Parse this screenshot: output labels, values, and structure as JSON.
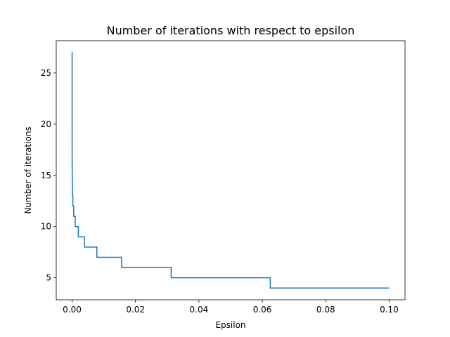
{
  "chart_data": {
    "type": "line",
    "title": "Number of iterations with respect to epsilon",
    "xlabel": "Epsilon",
    "ylabel": "Number of iterations",
    "xlim": [
      -0.005,
      0.105
    ],
    "ylim": [
      2.85,
      28.15
    ],
    "xticks": [
      0.0,
      0.02,
      0.04,
      0.06,
      0.08,
      0.1
    ],
    "xtick_labels": [
      "0.00",
      "0.02",
      "0.04",
      "0.06",
      "0.08",
      "0.10"
    ],
    "yticks": [
      5,
      10,
      15,
      20,
      25
    ],
    "ytick_labels": [
      "5",
      "10",
      "15",
      "20",
      "25"
    ],
    "grid": false,
    "line_color": "#1f77b4",
    "series": [
      {
        "x": [
          0.0,
          5e-07,
          1e-06,
          2e-06,
          4e-06,
          8e-06,
          1.6e-05,
          3.1e-05,
          6.1e-05,
          0.000122,
          0.000244,
          0.000488,
          0.000977,
          0.001953,
          0.003906,
          0.0078125,
          0.015625,
          0.03125,
          0.0625,
          0.1
        ],
        "y": [
          27,
          22,
          20,
          19,
          18,
          17,
          16,
          15,
          14,
          13,
          12,
          11,
          10,
          9,
          8,
          7,
          6,
          5,
          4,
          4
        ]
      }
    ]
  }
}
